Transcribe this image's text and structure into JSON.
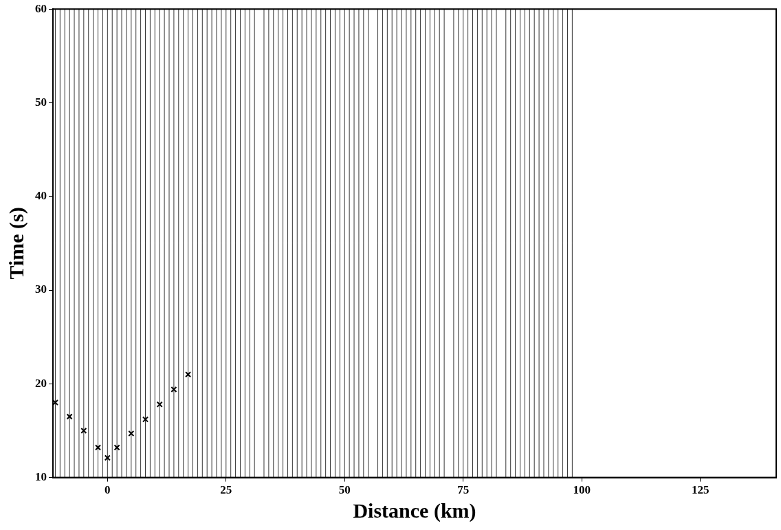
{
  "chart_data": {
    "type": "line",
    "x_label": "Distance (km)",
    "y_label": "Time (s)",
    "xlim": [
      -11.5,
      141
    ],
    "ylim": [
      10,
      60
    ],
    "xticks": [
      0,
      25,
      50,
      75,
      100,
      125
    ],
    "yticks": [
      10,
      20,
      30,
      40,
      50,
      60
    ],
    "grid": false,
    "traces": {
      "color": "#000000",
      "distances": [
        -11,
        -10,
        -9,
        -8,
        -7,
        -6,
        -5,
        -4,
        -3,
        -2,
        -1,
        0,
        1,
        2,
        3,
        4,
        5,
        6,
        7,
        8,
        9,
        10,
        11,
        12,
        13,
        14,
        15,
        16,
        17,
        18,
        19,
        20,
        21,
        22,
        23,
        24,
        25,
        26,
        27,
        28,
        29,
        30,
        31,
        33,
        34,
        35,
        36,
        37,
        38,
        39,
        40,
        41,
        42,
        43,
        44,
        45,
        46,
        47,
        48,
        49,
        50,
        51,
        52,
        53,
        54,
        55,
        57,
        58,
        59,
        60,
        61,
        62,
        63,
        64,
        65,
        66,
        67,
        68,
        69,
        70,
        71,
        73,
        74,
        75,
        76,
        77,
        78,
        79,
        80,
        81,
        82,
        84,
        85,
        86,
        87,
        88,
        89,
        90,
        91,
        92,
        93,
        94,
        95,
        96,
        97,
        98
      ]
    },
    "series": [
      {
        "x": [
          -11,
          -8,
          -5,
          -2,
          0,
          2,
          5,
          8,
          11,
          14,
          17
        ],
        "values": [
          18,
          16.5,
          15,
          13.2,
          12.1,
          13.2,
          14.7,
          16.2,
          17.8,
          19.4,
          21
        ],
        "color": "#000000",
        "marker": "cross",
        "line_style": "none"
      }
    ]
  }
}
